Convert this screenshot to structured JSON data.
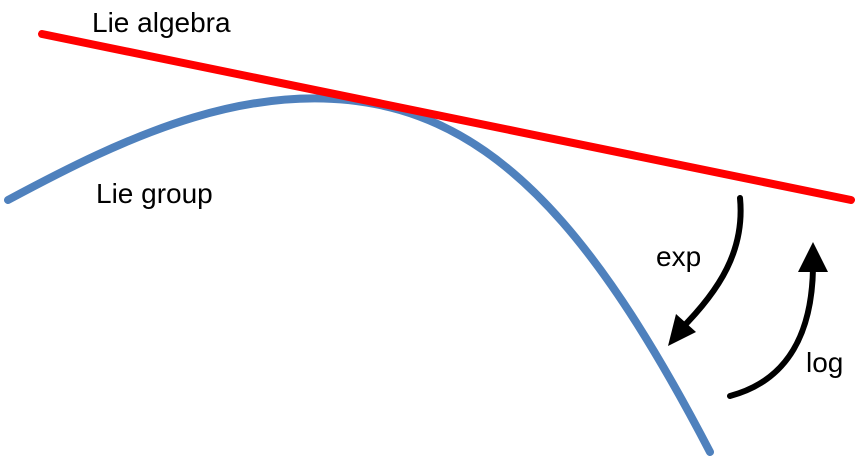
{
  "labels": {
    "algebra": "Lie algebra",
    "group": "Lie group",
    "exp": "exp",
    "log": "log"
  },
  "colors": {
    "algebra_line": "#ff0000",
    "group_curve": "#4f81bd",
    "arrows": "#000000"
  }
}
